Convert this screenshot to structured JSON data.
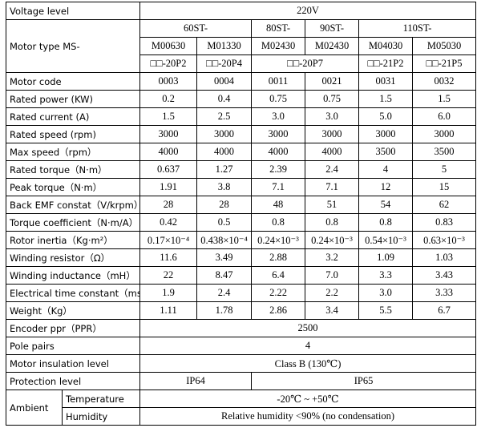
{
  "voltage": {
    "label": "Voltage level",
    "value": "220V"
  },
  "motor_type": {
    "label": "Motor type MS-",
    "series": [
      "60ST-",
      "80ST-",
      "90ST-",
      "110ST-"
    ],
    "models": [
      "M00630",
      "M01330",
      "M02430",
      "M02430",
      "M04030",
      "M05030"
    ],
    "suffixes": [
      "□□-20P2",
      "□□-20P4",
      "□□-20P7",
      "□□-21P2",
      "□□-21P5"
    ]
  },
  "specs": [
    {
      "label": "Motor code",
      "values": [
        "0003",
        "0004",
        "0011",
        "0021",
        "0031",
        "0032"
      ]
    },
    {
      "label": "Rated power (KW)",
      "values": [
        "0.2",
        "0.4",
        "0.75",
        "0.75",
        "1.5",
        "1.5"
      ]
    },
    {
      "label": "Rated current (A)",
      "values": [
        "1.5",
        "2.5",
        "3.0",
        "3.0",
        "5.0",
        "6.0"
      ]
    },
    {
      "label": "Rated speed (rpm)",
      "values": [
        "3000",
        "3000",
        "3000",
        "3000",
        "3000",
        "3000"
      ]
    },
    {
      "label": "Max speed（rpm）",
      "values": [
        "4000",
        "4000",
        "4000",
        "4000",
        "3500",
        "3500"
      ]
    },
    {
      "label": "Rated torque（N·m）",
      "values": [
        "0.637",
        "1.27",
        "2.39",
        "2.4",
        "4",
        "5"
      ]
    },
    {
      "label": "Peak torque（N·m）",
      "values": [
        "1.91",
        "3.8",
        "7.1",
        "7.1",
        "12",
        "15"
      ]
    },
    {
      "label": "Back EMF constat（V/krpm）",
      "values": [
        "28",
        "28",
        "48",
        "51",
        "54",
        "62"
      ]
    },
    {
      "label": "Torque coefficient（N·m/A）",
      "values": [
        "0.42",
        "0.5",
        "0.8",
        "0.8",
        "0.8",
        "0.83"
      ]
    },
    {
      "label": "Rotor inertia（Kg·m²）",
      "values": [
        "0.17×10⁻⁴",
        "0.438×10⁻⁴",
        "0.24×10⁻³",
        "0.24×10⁻³",
        "0.54×10⁻³",
        "0.63×10⁻³"
      ]
    },
    {
      "label": "Winding resistor（Ω）",
      "values": [
        "11.6",
        "3.49",
        "2.88",
        "3.2",
        "1.09",
        "1.03"
      ]
    },
    {
      "label": "Winding inductance（mH）",
      "values": [
        "22",
        "8.47",
        "6.4",
        "7.0",
        "3.3",
        "3.43"
      ]
    },
    {
      "label": "Electrical time constant（ms）",
      "values": [
        "1.9",
        "2.4",
        "2.22",
        "2.2",
        "3.0",
        "3.33"
      ]
    },
    {
      "label": "Weight（Kg）",
      "values": [
        "1.11",
        "1.78",
        "2.86",
        "3.4",
        "5.5",
        "6.7"
      ]
    }
  ],
  "common": [
    {
      "label": "Encoder ppr（PPR）",
      "value": "2500"
    },
    {
      "label": "Pole pairs",
      "value": "4"
    },
    {
      "label": "Motor insulation level",
      "value": "Class B (130℃)"
    }
  ],
  "protection": {
    "label": "Protection level",
    "values": [
      "IP64",
      "IP65"
    ]
  },
  "ambient": {
    "label": "Ambient",
    "items": [
      {
        "label": "Temperature",
        "value": "-20℃ ~ +50℃"
      },
      {
        "label": "Humidity",
        "value": "Relative humidity <90% (no condensation)"
      }
    ]
  }
}
